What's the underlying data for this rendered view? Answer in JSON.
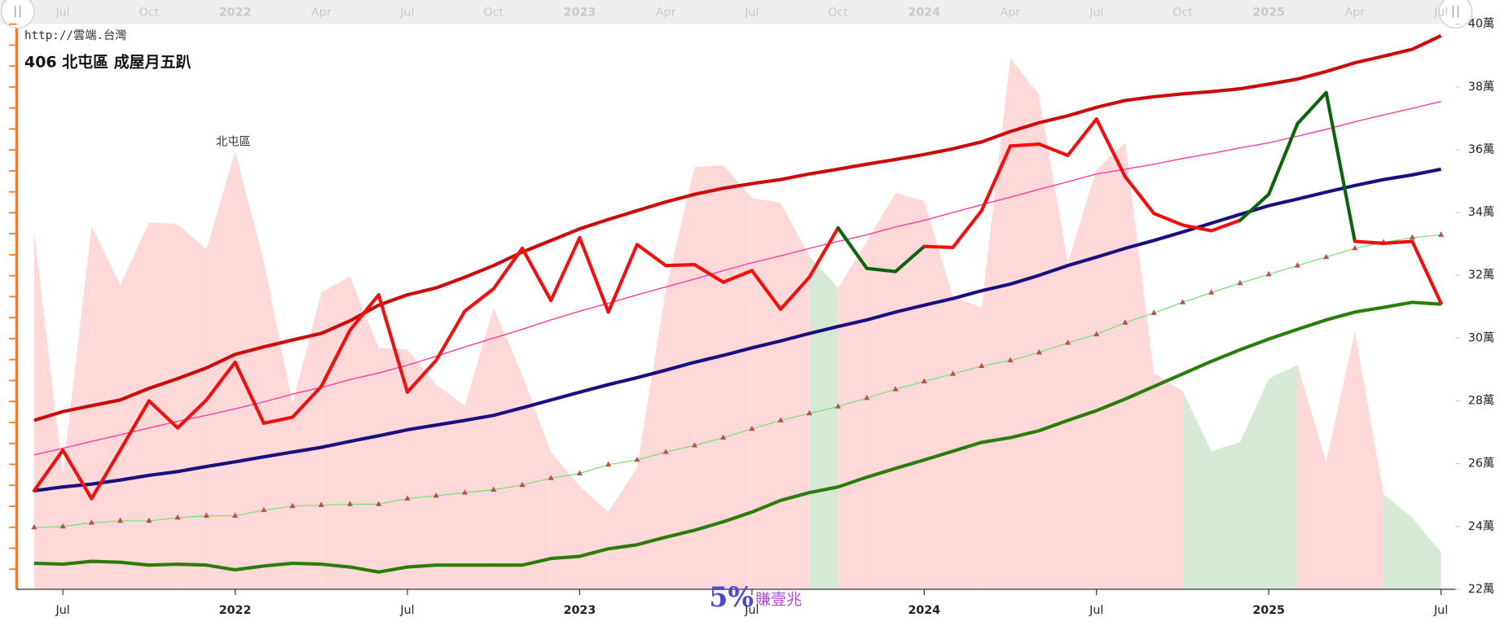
{
  "url": "http://雲端.台灣",
  "watermark": {
    "number": "5%",
    "text": "賺壹兆"
  },
  "chart_data": {
    "type": "line",
    "title": "406 北屯區 成屋月五趴",
    "annotation": "北屯區",
    "x": [
      "2021-06",
      "2021-07",
      "2021-08",
      "2021-09",
      "2021-10",
      "2021-11",
      "2021-12",
      "2022-01",
      "2022-02",
      "2022-03",
      "2022-04",
      "2022-05",
      "2022-06",
      "2022-07",
      "2022-08",
      "2022-09",
      "2022-10",
      "2022-11",
      "2022-12",
      "2023-01",
      "2023-02",
      "2023-03",
      "2023-04",
      "2023-05",
      "2023-06",
      "2023-07",
      "2023-08",
      "2023-09",
      "2023-10",
      "2023-11",
      "2023-12",
      "2024-01",
      "2024-02",
      "2024-03",
      "2024-04",
      "2024-05",
      "2024-06",
      "2024-07",
      "2024-08",
      "2024-09",
      "2024-10",
      "2024-11",
      "2024-12",
      "2025-01",
      "2025-02",
      "2025-03",
      "2025-04",
      "2025-05",
      "2025-06",
      "2025-07"
    ],
    "xticks": [
      {
        "value": "2021-07",
        "label": "Jul"
      },
      {
        "value": "2022-01",
        "label": "2022"
      },
      {
        "value": "2022-07",
        "label": "Jul"
      },
      {
        "value": "2023-01",
        "label": "2023"
      },
      {
        "value": "2023-07",
        "label": "Jul"
      },
      {
        "value": "2024-01",
        "label": "2024"
      },
      {
        "value": "2024-07",
        "label": "Jul"
      },
      {
        "value": "2025-01",
        "label": "2025"
      },
      {
        "value": "2025-07",
        "label": "Jul"
      }
    ],
    "nav_ticks": [
      {
        "value": "2021-07",
        "label": "Jul"
      },
      {
        "value": "2021-10",
        "label": "Oct"
      },
      {
        "value": "2022-01",
        "label": "2022"
      },
      {
        "value": "2022-04",
        "label": "Apr"
      },
      {
        "value": "2022-07",
        "label": "Jul"
      },
      {
        "value": "2022-10",
        "label": "Oct"
      },
      {
        "value": "2023-01",
        "label": "2023"
      },
      {
        "value": "2023-04",
        "label": "Apr"
      },
      {
        "value": "2023-07",
        "label": "Jul"
      },
      {
        "value": "2023-10",
        "label": "Oct"
      },
      {
        "value": "2024-01",
        "label": "2024"
      },
      {
        "value": "2024-04",
        "label": "Apr"
      },
      {
        "value": "2024-07",
        "label": "Jul"
      },
      {
        "value": "2024-10",
        "label": "Oct"
      },
      {
        "value": "2025-01",
        "label": "2025"
      },
      {
        "value": "2025-04",
        "label": "Apr"
      },
      {
        "value": "2025-07",
        "label": "Jul"
      }
    ],
    "ylim": [
      22,
      40
    ],
    "yticks": [
      {
        "value": 22,
        "label": "22萬"
      },
      {
        "value": 24,
        "label": "24萬"
      },
      {
        "value": 26,
        "label": "26萬"
      },
      {
        "value": 28,
        "label": "28萬"
      },
      {
        "value": 30,
        "label": "30萬"
      },
      {
        "value": 32,
        "label": "32萬"
      },
      {
        "value": 34,
        "label": "34萬"
      },
      {
        "value": 36,
        "label": "36萬"
      },
      {
        "value": 38,
        "label": "38萬"
      },
      {
        "value": 40,
        "label": "40萬"
      }
    ],
    "area": {
      "values": [
        33.38,
        25.69,
        33.57,
        31.69,
        33.69,
        33.63,
        32.83,
        35.94,
        32.46,
        27.91,
        31.45,
        31.97,
        29.69,
        29.63,
        28.52,
        27.85,
        30.98,
        28.83,
        26.37,
        25.29,
        24.46,
        25.88,
        31.54,
        35.45,
        35.51,
        34.46,
        34.31,
        32.62,
        31.6,
        33.08,
        34.62,
        34.37,
        31.32,
        30.98,
        38.92,
        37.75,
        32.4,
        35.38,
        36.22,
        28.89,
        28.31,
        26.4,
        26.68,
        28.71,
        29.14,
        26.06,
        30.22,
        25.02,
        24.28,
        23.17
      ],
      "segment_colors": [
        "#ffd9d9",
        "#ffd9d9",
        "#ffd9d9",
        "#ffd9d9",
        "#ffd9d9",
        "#ffd9d9",
        "#ffd9d9",
        "#ffd9d9",
        "#ffd9d9",
        "#ffd9d9",
        "#ffd9d9",
        "#ffd9d9",
        "#ffd9d9",
        "#ffd9d9",
        "#ffd9d9",
        "#ffd9d9",
        "#ffd9d9",
        "#ffd9d9",
        "#ffd9d9",
        "#ffd9d9",
        "#ffd9d9",
        "#ffd9d9",
        "#ffd9d9",
        "#ffd9d9",
        "#ffd9d9",
        "#ffd9d9",
        "#ffd9d9",
        "#d6e8d6",
        "#ffd9d9",
        "#ffd9d9",
        "#ffd9d9",
        "#ffd9d9",
        "#ffd9d9",
        "#ffd9d9",
        "#ffd9d9",
        "#ffd9d9",
        "#ffd9d9",
        "#ffd9d9",
        "#ffd9d9",
        "#ffd9d9",
        "#d6e8d6",
        "#d6e8d6",
        "#d6e8d6",
        "#d6e8d6",
        "#ffd9d9",
        "#ffd9d9",
        "#ffd9d9",
        "#d6e8d6",
        "#d6e8d6"
      ]
    },
    "series": [
      {
        "color": "#2a7d0a",
        "width": 3.5,
        "values": [
          22.83,
          22.8,
          22.89,
          22.86,
          22.77,
          22.8,
          22.77,
          22.62,
          22.74,
          22.83,
          22.8,
          22.71,
          22.55,
          22.71,
          22.77,
          22.77,
          22.77,
          22.77,
          22.98,
          23.05,
          23.29,
          23.42,
          23.66,
          23.88,
          24.15,
          24.46,
          24.83,
          25.08,
          25.26,
          25.57,
          25.85,
          26.12,
          26.4,
          26.68,
          26.83,
          27.05,
          27.38,
          27.69,
          28.06,
          28.46,
          28.86,
          29.26,
          29.63,
          29.97,
          30.28,
          30.58,
          30.83,
          30.98,
          31.14,
          31.08
        ]
      },
      {
        "color": "#6ee36e",
        "width": 1,
        "marker": "triangle",
        "marker_color": "#c0504d",
        "values": [
          23.97,
          24.0,
          24.12,
          24.18,
          24.18,
          24.28,
          24.34,
          24.34,
          24.52,
          24.65,
          24.68,
          24.71,
          24.71,
          24.89,
          24.98,
          25.08,
          25.17,
          25.32,
          25.54,
          25.69,
          25.97,
          26.12,
          26.37,
          26.58,
          26.83,
          27.11,
          27.38,
          27.6,
          27.82,
          28.09,
          28.37,
          28.62,
          28.86,
          29.11,
          29.29,
          29.54,
          29.85,
          30.12,
          30.49,
          30.8,
          31.14,
          31.45,
          31.75,
          32.03,
          32.31,
          32.58,
          32.86,
          33.05,
          33.2,
          33.29
        ]
      },
      {
        "color": "#1a0f80",
        "width": 3.5,
        "values": [
          25.14,
          25.26,
          25.35,
          25.48,
          25.63,
          25.75,
          25.91,
          26.06,
          26.22,
          26.37,
          26.52,
          26.71,
          26.89,
          27.08,
          27.23,
          27.38,
          27.54,
          27.78,
          28.03,
          28.28,
          28.52,
          28.74,
          28.98,
          29.23,
          29.45,
          29.69,
          29.91,
          30.15,
          30.37,
          30.58,
          30.83,
          31.05,
          31.26,
          31.51,
          31.72,
          32.0,
          32.31,
          32.58,
          32.86,
          33.11,
          33.38,
          33.66,
          33.94,
          34.22,
          34.43,
          34.65,
          34.86,
          35.05,
          35.2,
          35.38
        ]
      },
      {
        "color": "#ff3f9f",
        "width": 1.2,
        "values": [
          26.28,
          26.49,
          26.71,
          26.92,
          27.14,
          27.35,
          27.54,
          27.75,
          27.97,
          28.22,
          28.43,
          28.68,
          28.89,
          29.14,
          29.42,
          29.72,
          30.0,
          30.28,
          30.58,
          30.86,
          31.11,
          31.38,
          31.63,
          31.88,
          32.15,
          32.4,
          32.62,
          32.86,
          33.08,
          33.29,
          33.54,
          33.75,
          34.0,
          34.25,
          34.49,
          34.74,
          34.98,
          35.23,
          35.38,
          35.54,
          35.72,
          35.88,
          36.06,
          36.22,
          36.43,
          36.65,
          36.89,
          37.11,
          37.32,
          37.54
        ]
      },
      {
        "color": "#cc0a0a",
        "width": 3.5,
        "values": [
          27.38,
          27.66,
          27.85,
          28.03,
          28.4,
          28.71,
          29.05,
          29.48,
          29.72,
          29.94,
          30.15,
          30.55,
          31.05,
          31.38,
          31.6,
          31.94,
          32.31,
          32.74,
          33.11,
          33.48,
          33.78,
          34.06,
          34.34,
          34.58,
          34.77,
          34.92,
          35.05,
          35.23,
          35.38,
          35.54,
          35.69,
          35.85,
          36.03,
          36.25,
          36.58,
          36.86,
          37.08,
          37.35,
          37.57,
          37.69,
          37.78,
          37.85,
          37.94,
          38.09,
          38.25,
          38.49,
          38.77,
          38.98,
          39.2,
          39.63
        ]
      },
      {
        "width": 3.5,
        "values": [
          25.14,
          26.43,
          24.89,
          26.43,
          28.0,
          27.14,
          28.03,
          29.23,
          27.29,
          27.48,
          28.46,
          30.25,
          31.38,
          28.28,
          29.29,
          30.86,
          31.57,
          32.86,
          31.2,
          33.2,
          30.83,
          32.98,
          32.31,
          32.34,
          31.78,
          32.15,
          30.92,
          31.94,
          33.51,
          32.22,
          32.12,
          32.92,
          32.89,
          34.06,
          36.12,
          36.18,
          35.82,
          36.98,
          35.14,
          33.97,
          33.6,
          33.42,
          33.75,
          34.58,
          36.83,
          37.82,
          33.08,
          33.02,
          33.08,
          31.11
        ],
        "segment_colors": [
          "#f01010",
          "#f01010",
          "#f01010",
          "#f01010",
          "#f01010",
          "#f01010",
          "#f01010",
          "#f01010",
          "#f01010",
          "#f01010",
          "#f01010",
          "#f01010",
          "#f01010",
          "#f01010",
          "#f01010",
          "#f01010",
          "#f01010",
          "#f01010",
          "#f01010",
          "#f01010",
          "#f01010",
          "#f01010",
          "#f01010",
          "#f01010",
          "#f01010",
          "#f01010",
          "#f01010",
          "#f01010",
          "#0e640e",
          "#0e640e",
          "#0e640e",
          "#f01010",
          "#f01010",
          "#f01010",
          "#f01010",
          "#f01010",
          "#f01010",
          "#f01010",
          "#f01010",
          "#f01010",
          "#f01010",
          "#f01010",
          "#0e640e",
          "#0e640e",
          "#0e640e",
          "#0e640e",
          "#f01010",
          "#f01010",
          "#f01010"
        ]
      }
    ]
  }
}
